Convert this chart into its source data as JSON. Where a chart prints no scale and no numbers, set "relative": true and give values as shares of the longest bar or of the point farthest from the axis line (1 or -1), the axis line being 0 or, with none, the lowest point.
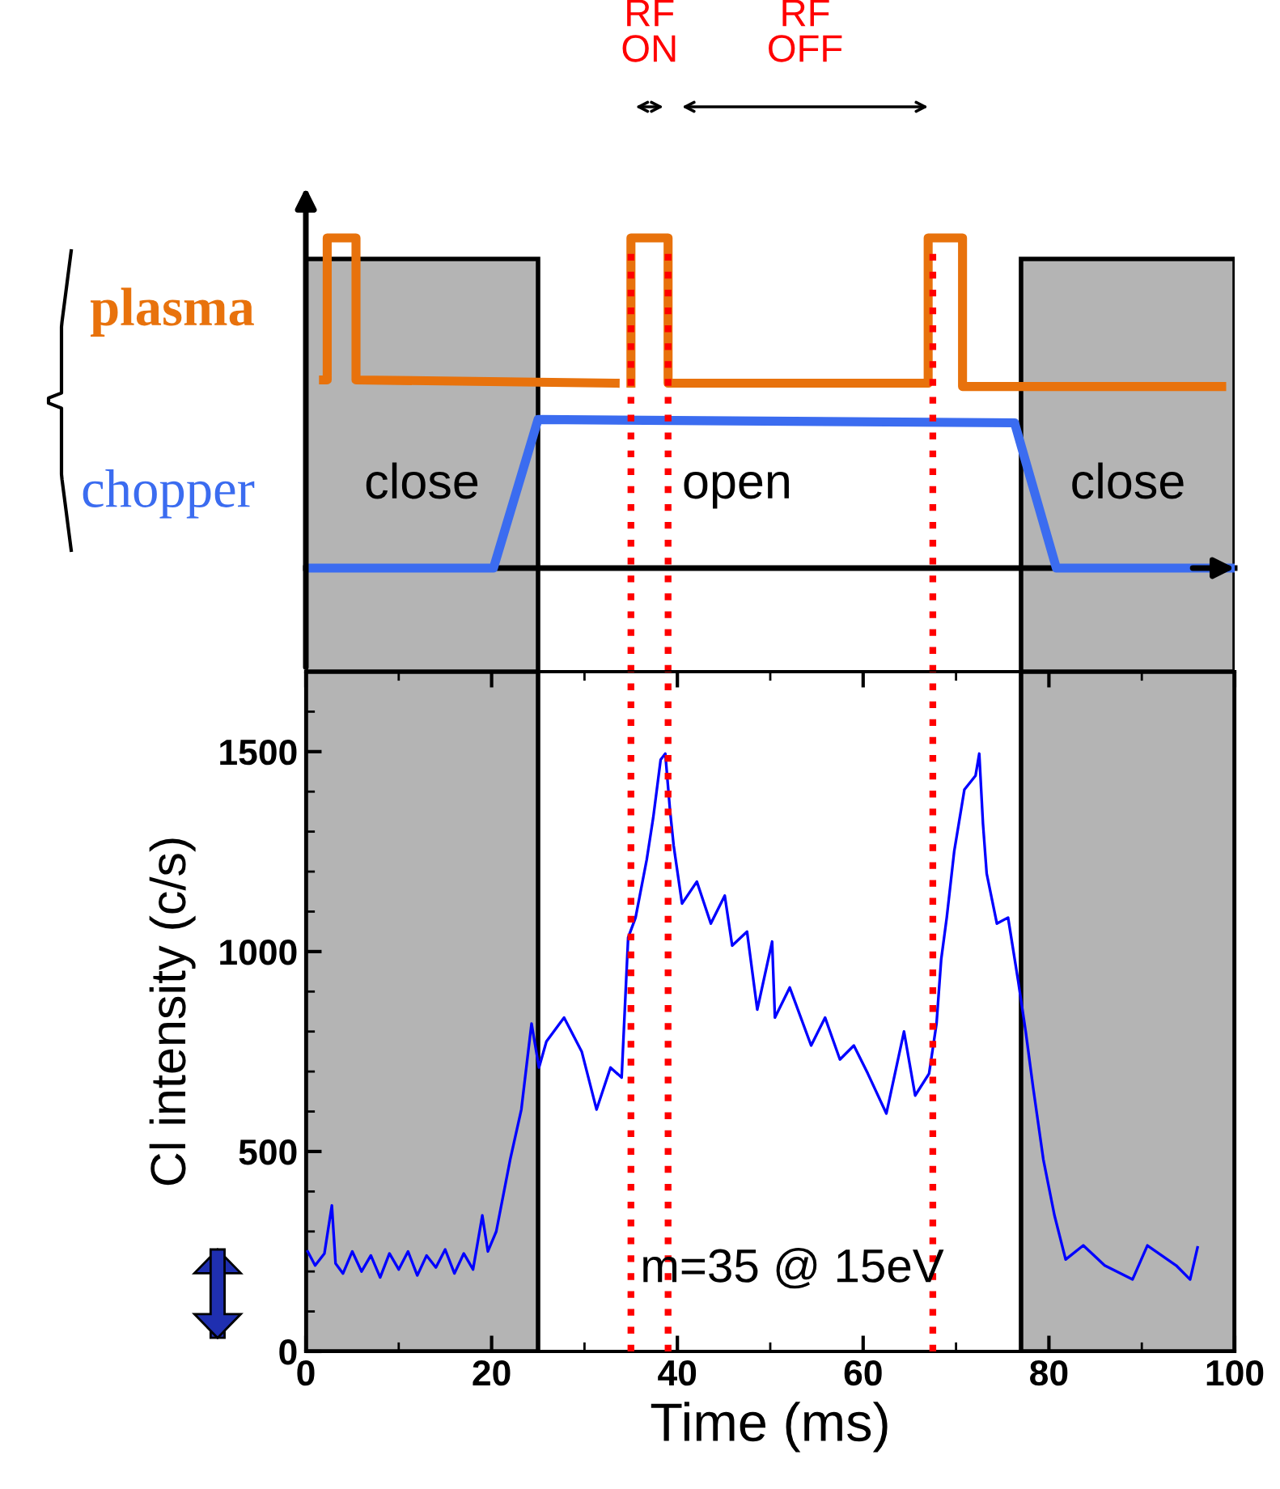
{
  "chart_data": [
    {
      "type": "line",
      "relative": true,
      "xlim": [
        0,
        100
      ],
      "grid": false,
      "legend": false,
      "marker": "none",
      "series": [
        {
          "name": "plasma",
          "color": "#e8720c",
          "x": [
            1.9,
            2.3,
            2.3,
            5.4,
            5.4,
            33.3,
            null,
            35,
            35,
            39,
            39,
            67,
            67,
            70.7,
            70.7,
            98.6
          ],
          "values": [
            0.57,
            0.57,
            1,
            1,
            0.57,
            0.56,
            null,
            0.56,
            1,
            1,
            0.56,
            0.56,
            1,
            1,
            0.55,
            0.55
          ]
        },
        {
          "name": "chopper",
          "color": "#3b6cf0",
          "x": [
            0,
            20.2,
            25,
            76.3,
            80.8,
            100
          ],
          "values": [
            0,
            0,
            0.45,
            0.44,
            0,
            0
          ]
        }
      ],
      "bands": [
        {
          "axis": "x",
          "from": 0,
          "to": 25,
          "label": "close",
          "color": "#b4b4b4"
        },
        {
          "axis": "x",
          "from": 77,
          "to": 100,
          "label": "close",
          "color": "#b4b4b4"
        }
      ],
      "ref_lines": [
        {
          "axis": "x",
          "value": 35,
          "color": "#ff0000",
          "line_style": "dotted"
        },
        {
          "axis": "x",
          "value": 39,
          "color": "#ff0000",
          "line_style": "dotted"
        },
        {
          "axis": "x",
          "value": 67.5,
          "color": "#ff0000",
          "line_style": "dotted"
        }
      ],
      "annotations": [
        "open",
        "RF ON",
        "RF OFF"
      ]
    },
    {
      "type": "line",
      "xlim": [
        0,
        100
      ],
      "xticks": [
        0,
        20,
        40,
        60,
        80,
        100
      ],
      "ylim": [
        0,
        1700
      ],
      "yticks": [
        0,
        500,
        1000,
        1500
      ],
      "grid": false,
      "legend": false,
      "marker": "none",
      "xlabel": "Time (ms)",
      "ylabel": "Cl intensity (c/s)",
      "series": [
        {
          "color": "#0000ff",
          "x": [
            0.2,
            1,
            2,
            2.8,
            3.2,
            4,
            5,
            6,
            7,
            8,
            9,
            10,
            11,
            12,
            13,
            14,
            15,
            16,
            17,
            18,
            19,
            19.6,
            20.5,
            22,
            23.2,
            24.3,
            25.1,
            25.9,
            27.8,
            29.7,
            31.3,
            32.8,
            34,
            34.7,
            35.5,
            36.7,
            37.4,
            38.2,
            38.7,
            39.2,
            39.6,
            40.5,
            42.1,
            43.6,
            45.1,
            45.9,
            47.5,
            48.6,
            50.2,
            50.5,
            52.1,
            54.4,
            55.9,
            57.5,
            59,
            60.5,
            62.5,
            64.4,
            65.6,
            67.1,
            67.9,
            68.4,
            69,
            69.8,
            70.9,
            72.1,
            72.5,
            72.9,
            73.3,
            74.4,
            75.6,
            76.7,
            77.5,
            78.3,
            79.4,
            80.6,
            81.8,
            83.7,
            86,
            89,
            90.6,
            93.7,
            95.2,
            96
          ],
          "values": [
            250,
            215,
            245,
            365,
            220,
            195,
            250,
            200,
            240,
            185,
            245,
            205,
            250,
            190,
            240,
            210,
            255,
            195,
            245,
            205,
            340,
            250,
            300,
            480,
            605,
            820,
            710,
            775,
            835,
            750,
            605,
            710,
            685,
            1035,
            1085,
            1230,
            1335,
            1480,
            1495,
            1355,
            1265,
            1120,
            1175,
            1070,
            1140,
            1015,
            1050,
            855,
            1025,
            835,
            910,
            765,
            835,
            730,
            765,
            695,
            595,
            800,
            640,
            695,
            820,
            980,
            1085,
            1250,
            1405,
            1440,
            1495,
            1320,
            1195,
            1070,
            1085,
            925,
            800,
            660,
            480,
            340,
            230,
            265,
            215,
            180,
            265,
            215,
            180,
            260
          ]
        }
      ],
      "bands": [
        {
          "axis": "x",
          "from": 0,
          "to": 25,
          "color": "#b4b4b4"
        },
        {
          "axis": "x",
          "from": 77,
          "to": 100,
          "color": "#b4b4b4"
        }
      ],
      "ref_lines": [
        {
          "axis": "x",
          "value": 35,
          "color": "#ff0000",
          "line_style": "dotted"
        },
        {
          "axis": "x",
          "value": 39,
          "color": "#ff0000",
          "line_style": "dotted"
        },
        {
          "axis": "x",
          "value": 67.5,
          "color": "#ff0000",
          "line_style": "dotted"
        }
      ],
      "annotations": [
        "m=35 @ 15eV"
      ]
    }
  ]
}
